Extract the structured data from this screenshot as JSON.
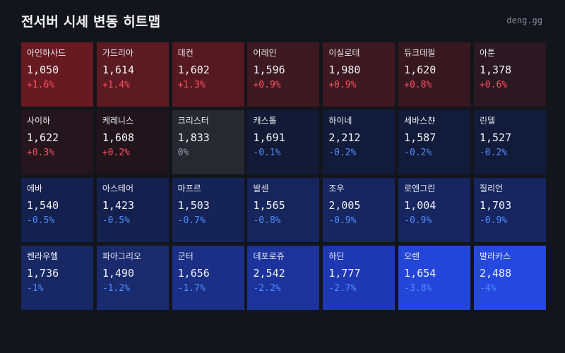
{
  "header": {
    "title": "전서버 시세 변동 히트맵",
    "brand": "deng.gg"
  },
  "colors": {
    "up_text": "#ff4f5e",
    "down_text": "#4d8dff",
    "flat_text": "#9aa0aa"
  },
  "chart_data": {
    "type": "heatmap",
    "columns": 7,
    "cells": [
      {
        "name": "아인하사드",
        "price": "1,050",
        "change": 1.6,
        "change_label": "+1.6%"
      },
      {
        "name": "가드리아",
        "price": "1,614",
        "change": 1.4,
        "change_label": "+1.4%"
      },
      {
        "name": "데컨",
        "price": "1,602",
        "change": 1.3,
        "change_label": "+1.3%"
      },
      {
        "name": "어레인",
        "price": "1,596",
        "change": 0.9,
        "change_label": "+0.9%"
      },
      {
        "name": "이실로테",
        "price": "1,980",
        "change": 0.9,
        "change_label": "+0.9%"
      },
      {
        "name": "듀크데필",
        "price": "1,620",
        "change": 0.8,
        "change_label": "+0.8%"
      },
      {
        "name": "아툰",
        "price": "1,378",
        "change": 0.6,
        "change_label": "+0.6%"
      },
      {
        "name": "사이하",
        "price": "1,622",
        "change": 0.3,
        "change_label": "+0.3%"
      },
      {
        "name": "케레니스",
        "price": "1,608",
        "change": 0.2,
        "change_label": "+0.2%"
      },
      {
        "name": "크리스터",
        "price": "1,833",
        "change": 0,
        "change_label": "0%"
      },
      {
        "name": "캐스톨",
        "price": "1,691",
        "change": -0.1,
        "change_label": "-0.1%"
      },
      {
        "name": "하이네",
        "price": "2,212",
        "change": -0.2,
        "change_label": "-0.2%"
      },
      {
        "name": "세바스챤",
        "price": "1,587",
        "change": -0.2,
        "change_label": "-0.2%"
      },
      {
        "name": "린델",
        "price": "1,527",
        "change": -0.2,
        "change_label": "-0.2%"
      },
      {
        "name": "에바",
        "price": "1,540",
        "change": -0.5,
        "change_label": "-0.5%"
      },
      {
        "name": "아스테어",
        "price": "1,423",
        "change": -0.5,
        "change_label": "-0.5%"
      },
      {
        "name": "마프르",
        "price": "1,503",
        "change": -0.7,
        "change_label": "-0.7%"
      },
      {
        "name": "발센",
        "price": "1,565",
        "change": -0.8,
        "change_label": "-0.8%"
      },
      {
        "name": "조우",
        "price": "2,005",
        "change": -0.9,
        "change_label": "-0.9%"
      },
      {
        "name": "로엔그린",
        "price": "1,004",
        "change": -0.9,
        "change_label": "-0.9%"
      },
      {
        "name": "질리언",
        "price": "1,703",
        "change": -0.9,
        "change_label": "-0.9%"
      },
      {
        "name": "켄라우헬",
        "price": "1,736",
        "change": -1,
        "change_label": "-1%"
      },
      {
        "name": "파아그리오",
        "price": "1,490",
        "change": -1.2,
        "change_label": "-1.2%"
      },
      {
        "name": "군터",
        "price": "1,656",
        "change": -1.7,
        "change_label": "-1.7%"
      },
      {
        "name": "데포로쥬",
        "price": "2,542",
        "change": -2.2,
        "change_label": "-2.2%"
      },
      {
        "name": "하딘",
        "price": "1,777",
        "change": -2.7,
        "change_label": "-2.7%"
      },
      {
        "name": "오렌",
        "price": "1,654",
        "change": -3.8,
        "change_label": "-3.8%"
      },
      {
        "name": "발라카스",
        "price": "2,488",
        "change": -4,
        "change_label": "-4%"
      }
    ]
  }
}
